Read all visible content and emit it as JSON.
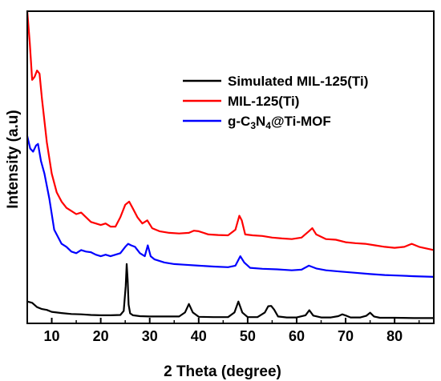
{
  "chart_data": {
    "type": "line",
    "title": "",
    "xlabel": "2 Theta (degree)",
    "ylabel": "Intensity (a.u)",
    "xlim": [
      5,
      88
    ],
    "ylim": [
      0,
      100
    ],
    "y_ticks_shown": false,
    "x_ticks": [
      10,
      20,
      30,
      40,
      50,
      60,
      70,
      80
    ],
    "legend_position": "top-right",
    "series": [
      {
        "name": "Simulated MIL-125(Ti)",
        "color": "#000000",
        "x": [
          5,
          6,
          7,
          8,
          9,
          10,
          11,
          12,
          14,
          16,
          18,
          20,
          22,
          24,
          24.7,
          25.1,
          25.3,
          25.5,
          25.7,
          26.0,
          26.6,
          28,
          30,
          33,
          36,
          37.2,
          38.0,
          38.8,
          40,
          43,
          46,
          47.3,
          48.1,
          48.9,
          50,
          52,
          53.5,
          54.2,
          54.8,
          55.4,
          56.2,
          58,
          60,
          61.8,
          62.6,
          63.4,
          65,
          67,
          68.5,
          69.3,
          70.2,
          71,
          73,
          74.2,
          75.0,
          75.8,
          77,
          80,
          84,
          88
        ],
        "values": [
          7,
          6.6,
          5.2,
          4.6,
          4.3,
          3.7,
          3.5,
          3.3,
          3.0,
          2.9,
          2.7,
          2.6,
          2.6,
          2.7,
          4,
          12,
          19,
          14,
          6,
          3.2,
          2.6,
          2.3,
          2.2,
          2.2,
          2.2,
          3.5,
          6.2,
          3.5,
          2.1,
          2.0,
          2.0,
          3.5,
          7.0,
          3.5,
          2.0,
          2.0,
          3.5,
          5.5,
          5.6,
          4.4,
          2.2,
          1.9,
          1.9,
          2.6,
          4.2,
          2.5,
          1.9,
          1.9,
          2.3,
          2.9,
          2.4,
          1.9,
          1.9,
          2.4,
          3.4,
          2.2,
          1.8,
          1.8,
          1.7,
          1.7
        ]
      },
      {
        "name": "MIL-125(Ti)",
        "color": "#ff0000",
        "x": [
          5,
          5.5,
          6,
          6.5,
          7,
          7.5,
          8,
          9,
          10,
          11,
          12,
          13,
          14,
          15,
          16,
          17,
          18,
          19,
          20,
          21,
          22,
          23,
          24,
          25,
          25.8,
          26.5,
          27.5,
          28.5,
          29.5,
          30.5,
          32,
          34,
          36,
          38,
          39,
          40,
          42,
          44,
          46,
          47.5,
          48.3,
          48.8,
          49.5,
          51,
          53,
          55,
          57,
          59,
          61,
          62.5,
          63.2,
          64,
          66,
          68,
          70,
          72,
          74,
          76,
          78,
          80,
          82,
          83.5,
          85,
          86.5,
          88
        ],
        "values": [
          100,
          90,
          78,
          79,
          81,
          80,
          72,
          58,
          48,
          42,
          39,
          37,
          36,
          35,
          35.5,
          34,
          32.5,
          32,
          31.5,
          32,
          31,
          31,
          34,
          38,
          39,
          37,
          34,
          32,
          33,
          30.5,
          29.5,
          29,
          28.8,
          29,
          29.7,
          29.5,
          28.5,
          28.3,
          28.2,
          30,
          34.5,
          33,
          28.5,
          28.2,
          28,
          27.5,
          27.2,
          27,
          27.5,
          29.5,
          30.5,
          28.5,
          27,
          26.8,
          26,
          25.7,
          25.5,
          25,
          24.5,
          24.2,
          24.5,
          25.5,
          24.5,
          24,
          23.5
        ]
      },
      {
        "name": "g-C3N4@Ti-MOF",
        "color": "#0000ff",
        "x": [
          5,
          5.6,
          6.2,
          6.8,
          7.2,
          7.8,
          8.5,
          9.5,
          10.5,
          12,
          13,
          14,
          15,
          16,
          17,
          18,
          19,
          20,
          21,
          22,
          23,
          24,
          25,
          25.6,
          26.2,
          27,
          28,
          29,
          29.6,
          30.2,
          31,
          33,
          35,
          37,
          40,
          43,
          46,
          47.5,
          48.5,
          49.3,
          50.5,
          53,
          56,
          59,
          61,
          62.5,
          64,
          66,
          69,
          72,
          75,
          78,
          81,
          84,
          86,
          88
        ],
        "values": [
          60,
          56,
          55,
          57,
          57.5,
          52,
          48,
          40,
          30,
          25.5,
          24.5,
          23,
          22.5,
          23.5,
          23,
          22.8,
          22,
          21.5,
          22,
          21.5,
          22,
          22.5,
          24.5,
          25.5,
          25,
          24.5,
          22.5,
          21.5,
          25,
          21.5,
          20.5,
          19.5,
          19,
          18.8,
          18.5,
          18.2,
          18.0,
          18.5,
          21.5,
          19.5,
          17.8,
          17.5,
          17.3,
          17.0,
          17.2,
          18.5,
          17.6,
          17.0,
          16.6,
          16.2,
          15.8,
          15.5,
          15.3,
          15.1,
          15.0,
          14.9
        ]
      }
    ]
  }
}
